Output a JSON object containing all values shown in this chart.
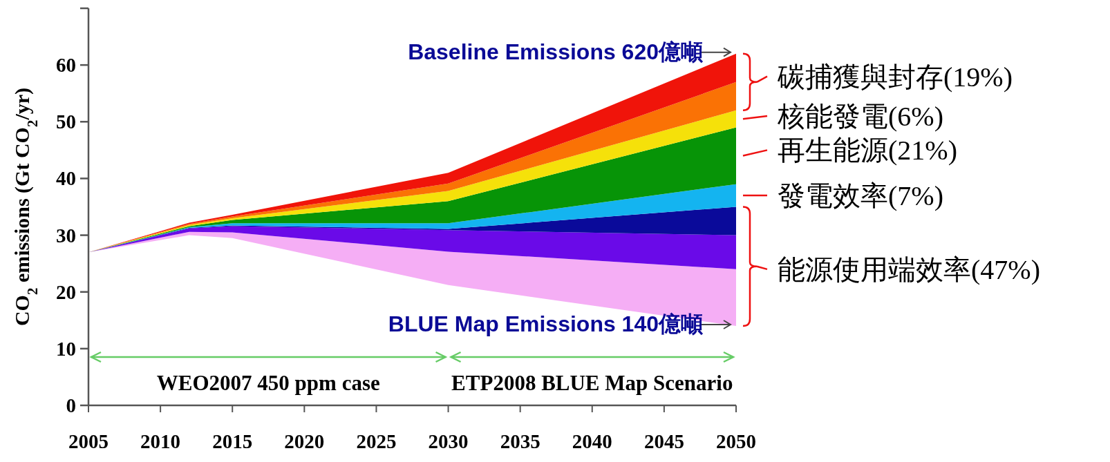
{
  "chart_data": {
    "type": "area",
    "stacked": true,
    "ylabel": "CO$_{2}$ emissions (Gt CO$_{2}$/yr)",
    "x": [
      2005,
      2012,
      2015,
      2030,
      2050
    ],
    "xlim": [
      2005,
      2050
    ],
    "xticks": [
      2005,
      2010,
      2015,
      2020,
      2025,
      2030,
      2035,
      2040,
      2045,
      2050
    ],
    "ylim": [
      0,
      70
    ],
    "yticks": [
      0,
      10,
      20,
      30,
      40,
      50,
      60,
      {
        "value": 70,
        "label": null
      }
    ],
    "series": [
      {
        "color": "#ffffff",
        "values": [
          27,
          30.0,
          29.5,
          21.2,
          14
        ]
      },
      {
        "color": "#f5aef5",
        "values": [
          0,
          0.6,
          1.0,
          5.9,
          10
        ]
      },
      {
        "color": "#6a0ae8",
        "values": [
          0,
          0.6,
          1.1,
          3.8,
          6
        ]
      },
      {
        "color": "#0a0a9a",
        "values": [
          0,
          0.1,
          0.1,
          0.2,
          5
        ]
      },
      {
        "color": "#14b4f0",
        "values": [
          0,
          0.1,
          0.4,
          1.0,
          4
        ]
      },
      {
        "color": "#079407",
        "values": [
          0,
          0.2,
          0.6,
          3.9,
          10
        ]
      },
      {
        "color": "#f5e10a",
        "values": [
          0,
          0.2,
          0.3,
          1.8,
          3
        ]
      },
      {
        "color": "#fa7205",
        "values": [
          0,
          0.2,
          0.3,
          1.3,
          5
        ]
      },
      {
        "color": "#f0140a",
        "values": [
          0,
          0.2,
          0.3,
          1.9,
          5
        ]
      }
    ],
    "annotations": [
      "Baseline Emissions 620億噸",
      "BLUE Map Emissions 140億噸",
      "碳捕獲與封存(19%)",
      "核能發電(6%)",
      "再生能源(21%)",
      "發電效率(7%)",
      "能源使用端效率(47%)",
      "WEO2007 450 ppm case",
      "ETP2008 BLUE Map Scenario"
    ]
  }
}
